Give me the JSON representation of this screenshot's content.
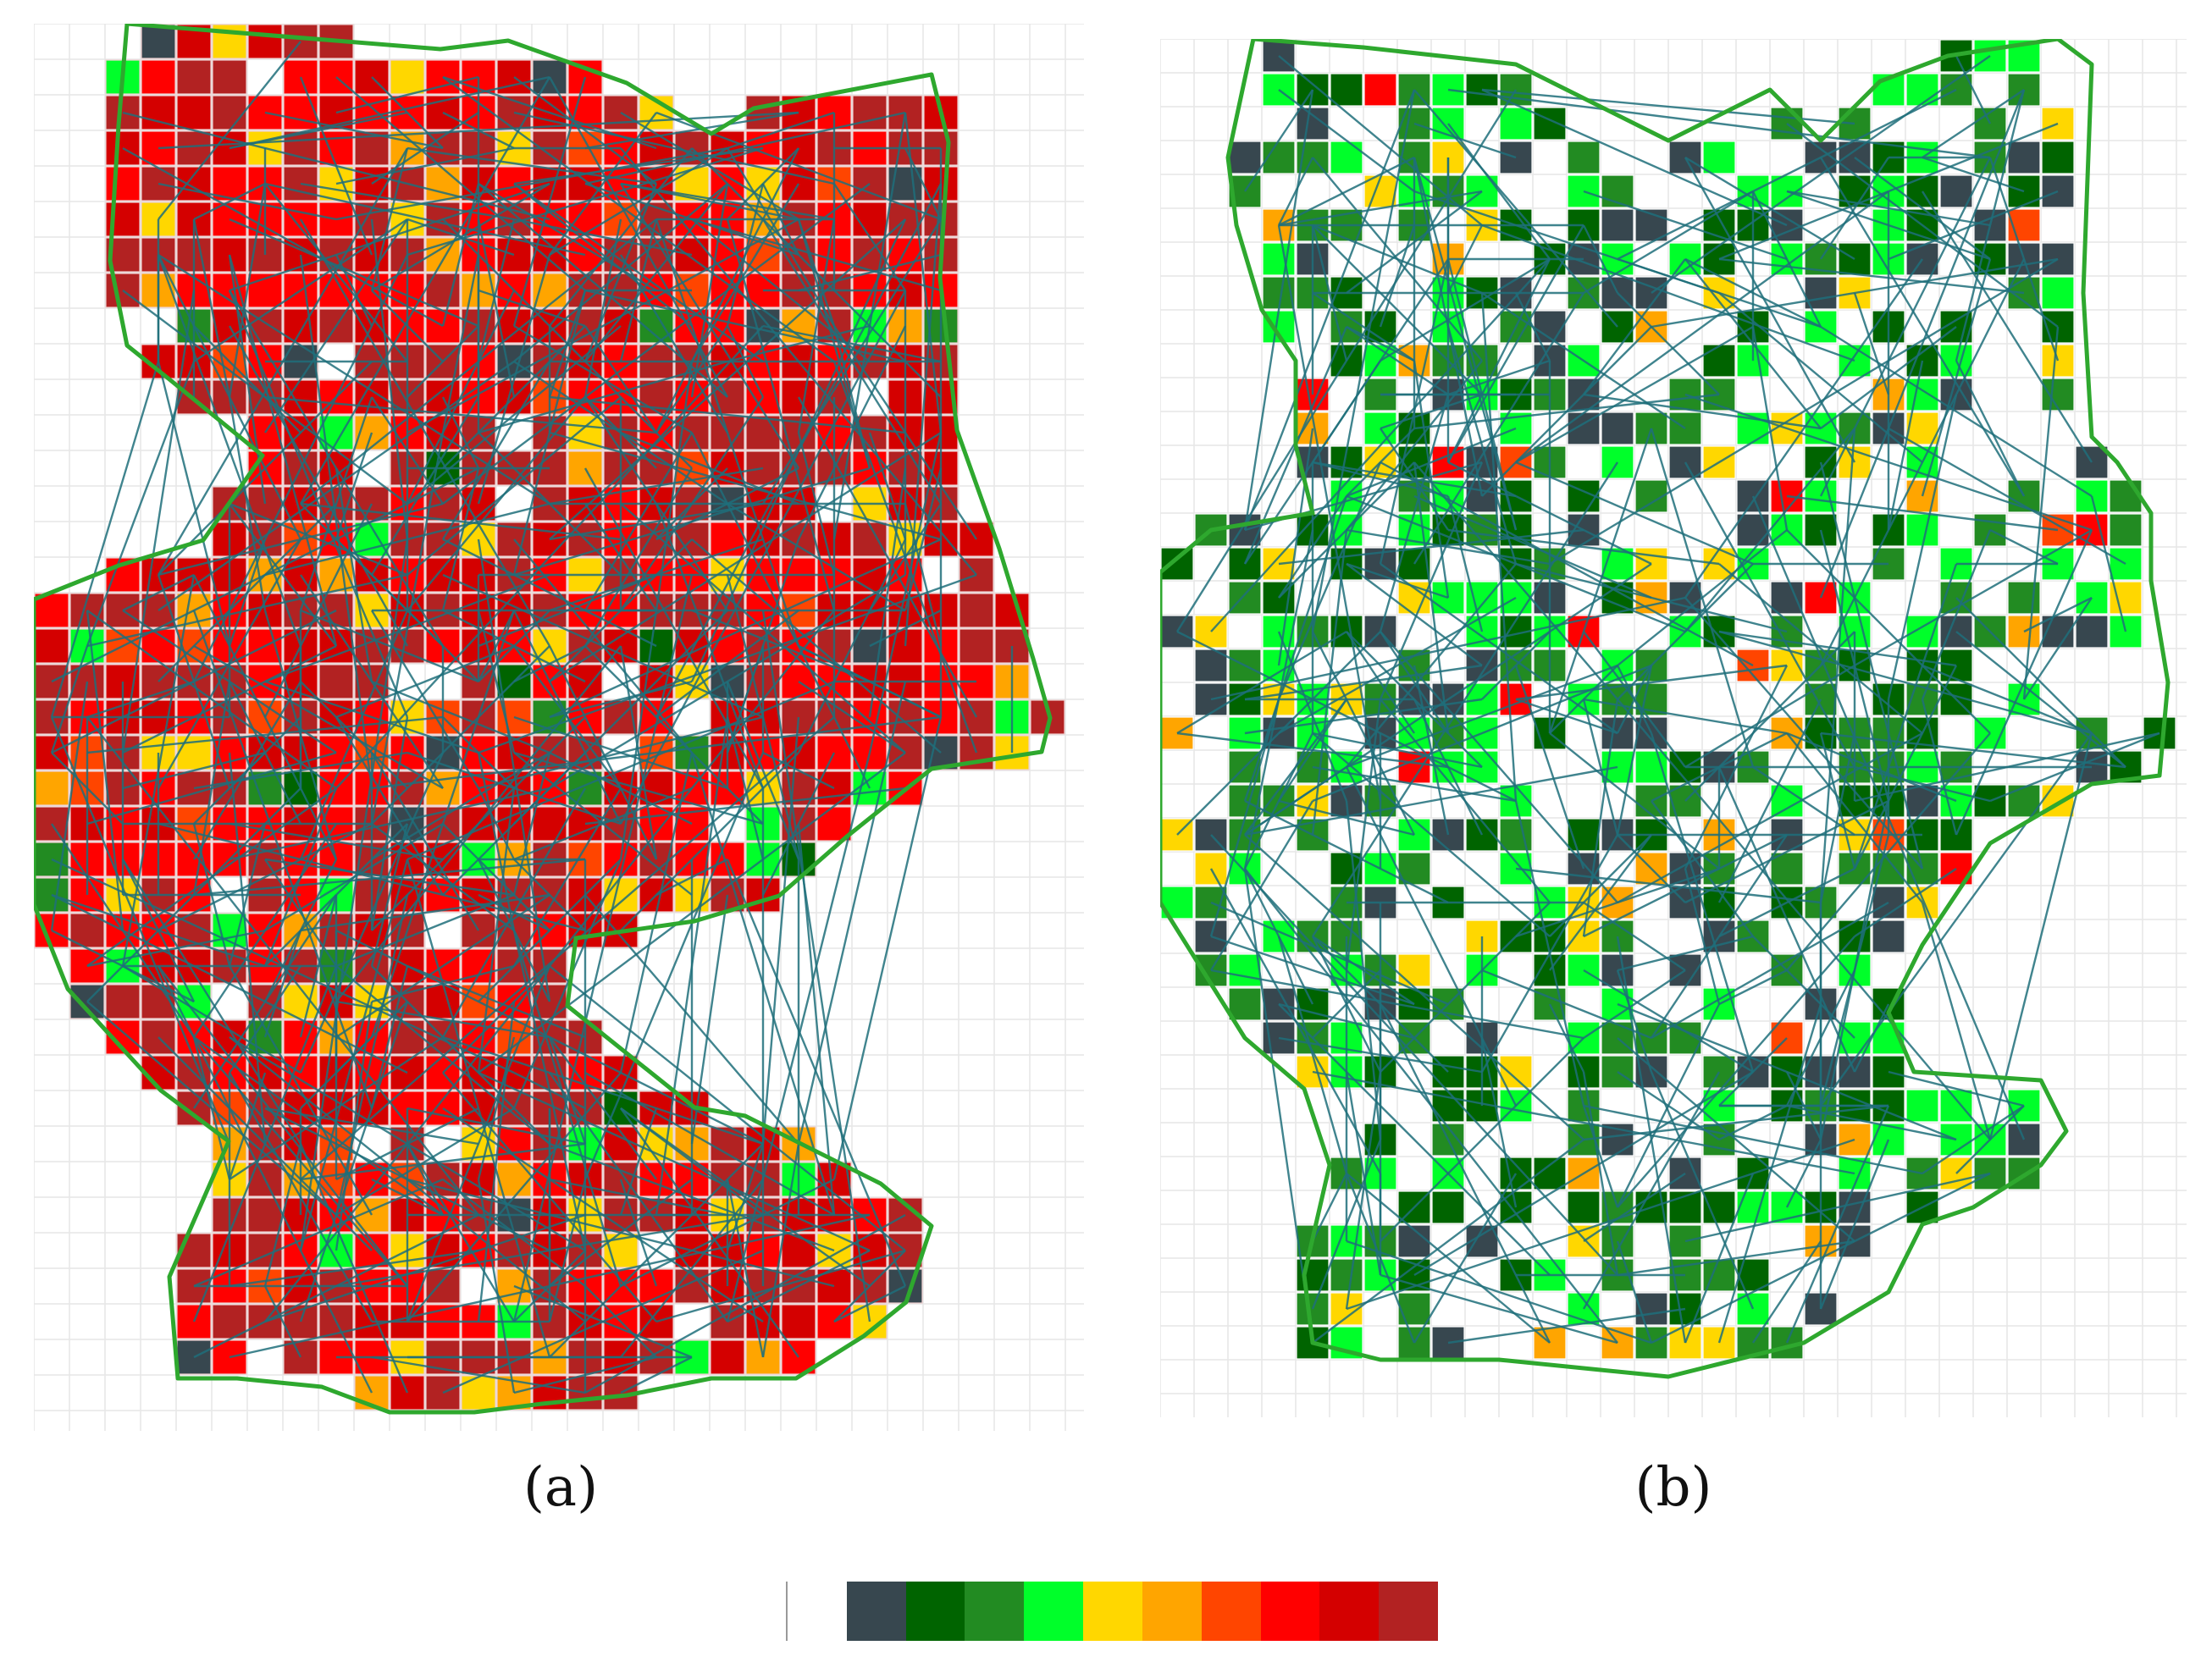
{
  "figure": {
    "panels": [
      {
        "id": "a",
        "caption": "(a)"
      },
      {
        "id": "b",
        "caption": "(b)"
      }
    ],
    "legend": {
      "colors": [
        "#ffffff",
        "#37474f",
        "#006400",
        "#228b22",
        "#00ff2a",
        "#ffd700",
        "#ffa500",
        "#ff4500",
        "#ff0000",
        "#d40000",
        "#b22222"
      ]
    },
    "colors": {
      "boundary": "#2ea82e",
      "network_edge": "#1f6f7a",
      "grid_line": "#e6e6e6",
      "cell_separator": "#f3dada"
    }
  }
}
